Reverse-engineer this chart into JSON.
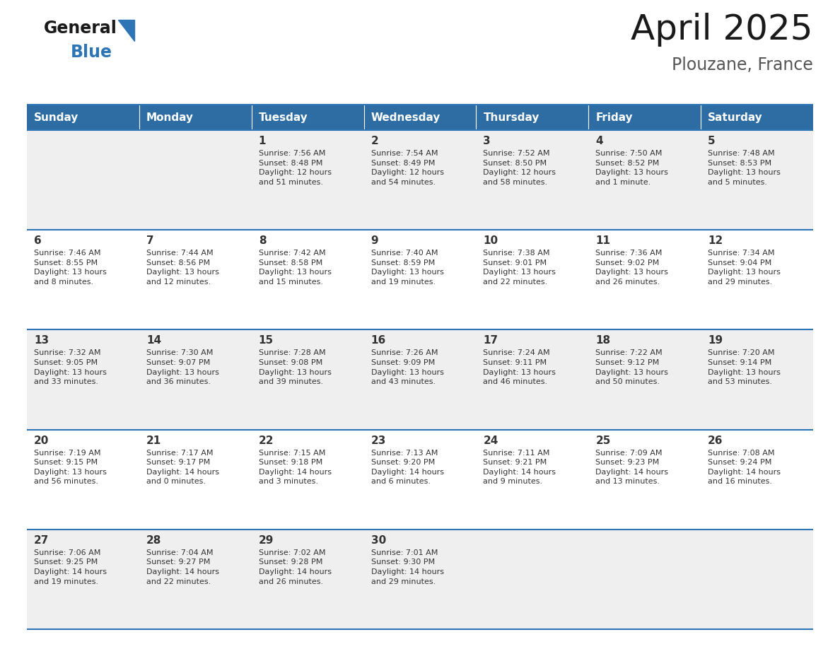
{
  "title": "April 2025",
  "subtitle": "Plouzane, France",
  "header_color": "#2E6DA4",
  "header_text_color": "#FFFFFF",
  "day_names": [
    "Sunday",
    "Monday",
    "Tuesday",
    "Wednesday",
    "Thursday",
    "Friday",
    "Saturday"
  ],
  "row_bg_odd": "#EFEFEF",
  "row_bg_even": "#FFFFFF",
  "cell_border_color": "#2E75B6",
  "text_color": "#333333",
  "logo_general_color": "#1a1a1a",
  "logo_blue_color": "#2E75B6",
  "calendar": [
    [
      {
        "day": null,
        "text": ""
      },
      {
        "day": null,
        "text": ""
      },
      {
        "day": 1,
        "text": "Sunrise: 7:56 AM\nSunset: 8:48 PM\nDaylight: 12 hours\nand 51 minutes."
      },
      {
        "day": 2,
        "text": "Sunrise: 7:54 AM\nSunset: 8:49 PM\nDaylight: 12 hours\nand 54 minutes."
      },
      {
        "day": 3,
        "text": "Sunrise: 7:52 AM\nSunset: 8:50 PM\nDaylight: 12 hours\nand 58 minutes."
      },
      {
        "day": 4,
        "text": "Sunrise: 7:50 AM\nSunset: 8:52 PM\nDaylight: 13 hours\nand 1 minute."
      },
      {
        "day": 5,
        "text": "Sunrise: 7:48 AM\nSunset: 8:53 PM\nDaylight: 13 hours\nand 5 minutes."
      }
    ],
    [
      {
        "day": 6,
        "text": "Sunrise: 7:46 AM\nSunset: 8:55 PM\nDaylight: 13 hours\nand 8 minutes."
      },
      {
        "day": 7,
        "text": "Sunrise: 7:44 AM\nSunset: 8:56 PM\nDaylight: 13 hours\nand 12 minutes."
      },
      {
        "day": 8,
        "text": "Sunrise: 7:42 AM\nSunset: 8:58 PM\nDaylight: 13 hours\nand 15 minutes."
      },
      {
        "day": 9,
        "text": "Sunrise: 7:40 AM\nSunset: 8:59 PM\nDaylight: 13 hours\nand 19 minutes."
      },
      {
        "day": 10,
        "text": "Sunrise: 7:38 AM\nSunset: 9:01 PM\nDaylight: 13 hours\nand 22 minutes."
      },
      {
        "day": 11,
        "text": "Sunrise: 7:36 AM\nSunset: 9:02 PM\nDaylight: 13 hours\nand 26 minutes."
      },
      {
        "day": 12,
        "text": "Sunrise: 7:34 AM\nSunset: 9:04 PM\nDaylight: 13 hours\nand 29 minutes."
      }
    ],
    [
      {
        "day": 13,
        "text": "Sunrise: 7:32 AM\nSunset: 9:05 PM\nDaylight: 13 hours\nand 33 minutes."
      },
      {
        "day": 14,
        "text": "Sunrise: 7:30 AM\nSunset: 9:07 PM\nDaylight: 13 hours\nand 36 minutes."
      },
      {
        "day": 15,
        "text": "Sunrise: 7:28 AM\nSunset: 9:08 PM\nDaylight: 13 hours\nand 39 minutes."
      },
      {
        "day": 16,
        "text": "Sunrise: 7:26 AM\nSunset: 9:09 PM\nDaylight: 13 hours\nand 43 minutes."
      },
      {
        "day": 17,
        "text": "Sunrise: 7:24 AM\nSunset: 9:11 PM\nDaylight: 13 hours\nand 46 minutes."
      },
      {
        "day": 18,
        "text": "Sunrise: 7:22 AM\nSunset: 9:12 PM\nDaylight: 13 hours\nand 50 minutes."
      },
      {
        "day": 19,
        "text": "Sunrise: 7:20 AM\nSunset: 9:14 PM\nDaylight: 13 hours\nand 53 minutes."
      }
    ],
    [
      {
        "day": 20,
        "text": "Sunrise: 7:19 AM\nSunset: 9:15 PM\nDaylight: 13 hours\nand 56 minutes."
      },
      {
        "day": 21,
        "text": "Sunrise: 7:17 AM\nSunset: 9:17 PM\nDaylight: 14 hours\nand 0 minutes."
      },
      {
        "day": 22,
        "text": "Sunrise: 7:15 AM\nSunset: 9:18 PM\nDaylight: 14 hours\nand 3 minutes."
      },
      {
        "day": 23,
        "text": "Sunrise: 7:13 AM\nSunset: 9:20 PM\nDaylight: 14 hours\nand 6 minutes."
      },
      {
        "day": 24,
        "text": "Sunrise: 7:11 AM\nSunset: 9:21 PM\nDaylight: 14 hours\nand 9 minutes."
      },
      {
        "day": 25,
        "text": "Sunrise: 7:09 AM\nSunset: 9:23 PM\nDaylight: 14 hours\nand 13 minutes."
      },
      {
        "day": 26,
        "text": "Sunrise: 7:08 AM\nSunset: 9:24 PM\nDaylight: 14 hours\nand 16 minutes."
      }
    ],
    [
      {
        "day": 27,
        "text": "Sunrise: 7:06 AM\nSunset: 9:25 PM\nDaylight: 14 hours\nand 19 minutes."
      },
      {
        "day": 28,
        "text": "Sunrise: 7:04 AM\nSunset: 9:27 PM\nDaylight: 14 hours\nand 22 minutes."
      },
      {
        "day": 29,
        "text": "Sunrise: 7:02 AM\nSunset: 9:28 PM\nDaylight: 14 hours\nand 26 minutes."
      },
      {
        "day": 30,
        "text": "Sunrise: 7:01 AM\nSunset: 9:30 PM\nDaylight: 14 hours\nand 29 minutes."
      },
      {
        "day": null,
        "text": ""
      },
      {
        "day": null,
        "text": ""
      },
      {
        "day": null,
        "text": ""
      }
    ]
  ]
}
